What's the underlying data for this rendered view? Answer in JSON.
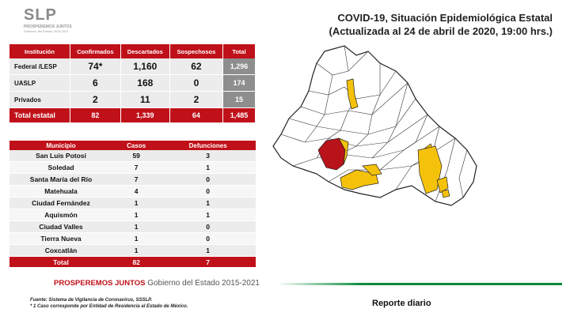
{
  "logo": {
    "main": "SLP",
    "sub": "PROSPEREMOS JUNTOS",
    "sub2": "Gobierno del Estado 2015-2021"
  },
  "title": {
    "line1": "COVID-19, Situación Epidemiológica Estatal",
    "line2": "(Actualizada al 24 de abril de 2020, 19:00 hrs.)"
  },
  "table1": {
    "headers": [
      "Institución",
      "Confirmados",
      "Descartados",
      "Sospechosos",
      "Total"
    ],
    "rows": [
      [
        "Federal /LESP",
        "74*",
        "1,160",
        "62",
        "1,296"
      ],
      [
        "UASLP",
        "6",
        "168",
        "0",
        "174"
      ],
      [
        "Privados",
        "2",
        "11",
        "2",
        "15"
      ]
    ],
    "total": [
      "Total estatal",
      "82",
      "1,339",
      "64",
      "1,485"
    ]
  },
  "table2": {
    "headers": [
      "Municipio",
      "Casos",
      "Defunciones"
    ],
    "rows": [
      [
        "San Luis Potosí",
        "59",
        "3"
      ],
      [
        "Soledad",
        "7",
        "1"
      ],
      [
        "Santa María del Río",
        "7",
        "0"
      ],
      [
        "Matehuala",
        "4",
        "0"
      ],
      [
        "Ciudad Fernández",
        "1",
        "1"
      ],
      [
        "Aquismón",
        "1",
        "1"
      ],
      [
        "Ciudad Valles",
        "1",
        "0"
      ],
      [
        "Tierra Nueva",
        "1",
        "0"
      ],
      [
        "Coxcatlán",
        "1",
        "1"
      ]
    ],
    "total": [
      "Total",
      "82",
      "7"
    ]
  },
  "footer": {
    "slogan": "PROSPEREMOS JUNTOS",
    "gobierno": "Gobierno del Estado 2015-2021",
    "fuente": "Fuente: Sistema de Vigilancia de Coronavirus, SSSLP.",
    "nota": "* 1 Caso corresponde por Entidad de Residencia al Estado de México.",
    "reporte": "Reporte diario"
  },
  "colors": {
    "red": "#c0111a",
    "gray": "#8e8e8e",
    "yellow": "#f5c20b",
    "darkred": "#b8121b",
    "green": "#0a8a3a"
  }
}
